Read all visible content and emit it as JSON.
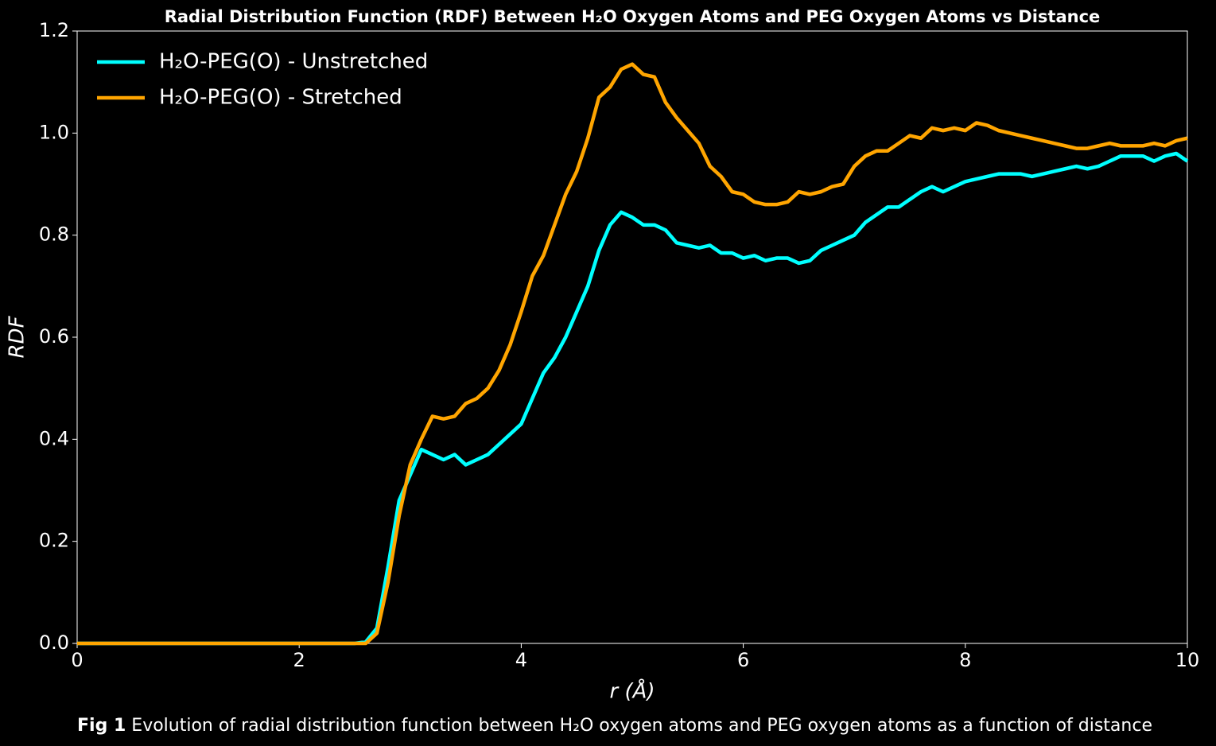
{
  "chart_data": {
    "type": "line",
    "title": "Radial Distribution Function (RDF) Between H₂O Oxygen Atoms and PEG Oxygen Atoms vs Distance",
    "x_label": "r (Å)",
    "y_label": "RDF",
    "caption_label": "Fig 1",
    "caption": "Evolution of radial distribution function between H₂O oxygen atoms and PEG oxygen atoms as a function of distance",
    "legend": "upper left",
    "xlim": [
      0,
      10
    ],
    "ylim": [
      0,
      1.2
    ],
    "xticks": [
      0,
      2,
      4,
      6,
      8,
      10
    ],
    "yticks": [
      {
        "value": 0,
        "label": "0.0"
      },
      0.2,
      0.4,
      0.6,
      0.8,
      {
        "value": 1,
        "label": "1.0"
      },
      1.2
    ],
    "x": [
      0,
      0.1,
      0.2,
      0.3,
      0.4,
      0.5,
      0.6,
      0.7,
      0.8,
      0.9,
      1,
      1.1,
      1.2,
      1.3,
      1.4,
      1.5,
      1.6,
      1.7,
      1.8,
      1.9,
      2,
      2.1,
      2.2,
      2.3,
      2.4,
      2.5,
      2.6,
      2.7,
      2.8,
      2.9,
      3,
      3.1,
      3.2,
      3.3,
      3.4,
      3.5,
      3.6,
      3.7,
      3.8,
      3.9,
      4,
      4.1,
      4.2,
      4.3,
      4.4,
      4.5,
      4.6,
      4.7,
      4.8,
      4.9,
      5,
      5.1,
      5.2,
      5.3,
      5.4,
      5.5,
      5.6,
      5.7,
      5.8,
      5.9,
      6,
      6.1,
      6.2,
      6.3,
      6.4,
      6.5,
      6.6,
      6.7,
      6.8,
      6.9,
      7,
      7.1,
      7.2,
      7.3,
      7.4,
      7.5,
      7.6,
      7.7,
      7.8,
      7.9,
      8,
      8.1,
      8.2,
      8.3,
      8.4,
      8.5,
      8.6,
      8.7,
      8.8,
      8.9,
      9,
      9.1,
      9.2,
      9.3,
      9.4,
      9.5,
      9.6,
      9.7,
      9.8,
      9.9,
      10
    ],
    "series": [
      {
        "name": "H₂O-PEG(O) - Unstretched",
        "color": "#00ffff",
        "values": [
          0,
          0,
          0,
          0,
          0,
          0,
          0,
          0,
          0,
          0,
          0,
          0,
          0,
          0,
          0,
          0,
          0,
          0,
          0,
          0,
          0,
          0,
          0,
          0,
          0,
          0,
          0.003,
          0.03,
          0.15,
          0.28,
          0.33,
          0.38,
          0.37,
          0.36,
          0.37,
          0.35,
          0.36,
          0.37,
          0.39,
          0.41,
          0.43,
          0.48,
          0.53,
          0.56,
          0.6,
          0.65,
          0.7,
          0.77,
          0.82,
          0.845,
          0.835,
          0.82,
          0.82,
          0.81,
          0.785,
          0.78,
          0.775,
          0.78,
          0.765,
          0.765,
          0.755,
          0.76,
          0.75,
          0.755,
          0.755,
          0.745,
          0.75,
          0.77,
          0.78,
          0.79,
          0.8,
          0.825,
          0.84,
          0.855,
          0.855,
          0.87,
          0.885,
          0.895,
          0.885,
          0.895,
          0.905,
          0.91,
          0.915,
          0.92,
          0.92,
          0.92,
          0.915,
          0.92,
          0.925,
          0.93,
          0.935,
          0.93,
          0.935,
          0.945,
          0.955,
          0.955,
          0.955,
          0.945,
          0.955,
          0.96,
          0.945
        ]
      },
      {
        "name": "H₂O-PEG(O) - Stretched",
        "color": "#ffa500",
        "values": [
          0,
          0,
          0,
          0,
          0,
          0,
          0,
          0,
          0,
          0,
          0,
          0,
          0,
          0,
          0,
          0,
          0,
          0,
          0,
          0,
          0,
          0,
          0,
          0,
          0,
          0,
          0,
          0.02,
          0.12,
          0.25,
          0.35,
          0.4,
          0.445,
          0.44,
          0.445,
          0.47,
          0.48,
          0.5,
          0.535,
          0.585,
          0.65,
          0.72,
          0.76,
          0.82,
          0.88,
          0.925,
          0.99,
          1.07,
          1.09,
          1.125,
          1.135,
          1.115,
          1.11,
          1.06,
          1.03,
          1.005,
          0.98,
          0.935,
          0.915,
          0.885,
          0.88,
          0.865,
          0.86,
          0.86,
          0.865,
          0.885,
          0.88,
          0.885,
          0.895,
          0.9,
          0.935,
          0.955,
          0.965,
          0.965,
          0.98,
          0.995,
          0.99,
          1.01,
          1.005,
          1.01,
          1.005,
          1.02,
          1.015,
          1.005,
          1,
          0.995,
          0.99,
          0.985,
          0.98,
          0.975,
          0.97,
          0.97,
          0.975,
          0.98,
          0.975,
          0.975,
          0.975,
          0.98,
          0.975,
          0.985,
          0.99
        ]
      }
    ]
  }
}
